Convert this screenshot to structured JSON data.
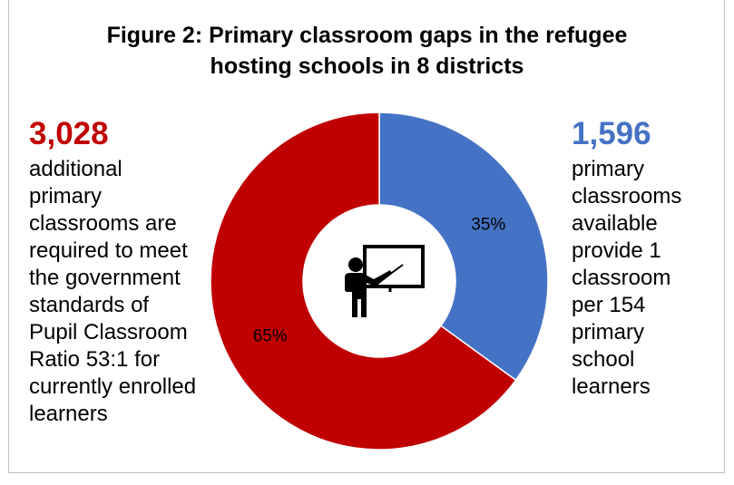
{
  "title_lines": [
    "Figure 2: Primary classroom gaps in the refugee",
    "hosting schools in 8 districts"
  ],
  "left_annotation": {
    "number": "3,028",
    "lines": [
      "additional",
      "primary",
      "classrooms are",
      "required to meet",
      "the government",
      "standards of",
      "Pupil Classroom",
      "Ratio 53:1 for",
      "currently enrolled",
      "learners"
    ]
  },
  "right_annotation": {
    "number": "1,596",
    "lines": [
      "primary",
      "classrooms",
      "available",
      "provide 1",
      "classroom",
      "per 154",
      "primary",
      "school",
      "learners"
    ]
  },
  "colors": {
    "red": "#c00000",
    "blue": "#4472c4"
  },
  "center_icon": "teacher-at-board-icon",
  "chart_data": {
    "type": "pie",
    "donut": true,
    "slices": [
      {
        "value": 35,
        "label": "35%",
        "color": "#4472c4"
      },
      {
        "value": 65,
        "label": "65%",
        "color": "#c00000"
      }
    ]
  }
}
